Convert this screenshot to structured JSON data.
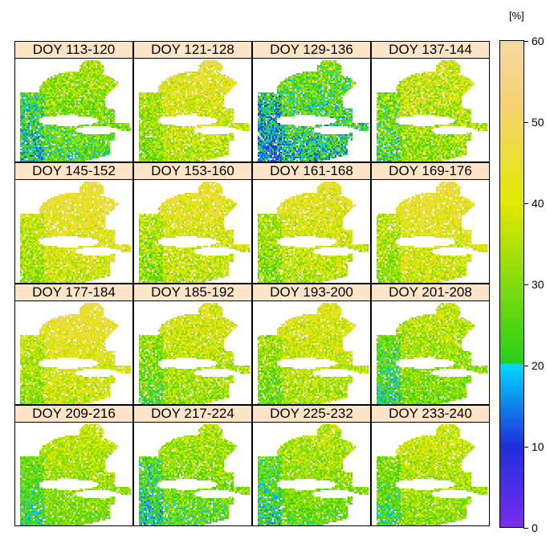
{
  "unit_label": "[%]",
  "panels": [
    {
      "label": "DOY 113-120",
      "mean": 30,
      "spread": 9
    },
    {
      "label": "DOY 121-128",
      "mean": 40,
      "spread": 9
    },
    {
      "label": "DOY 129-136",
      "mean": 25,
      "spread": 10
    },
    {
      "label": "DOY 137-144",
      "mean": 36,
      "spread": 11
    },
    {
      "label": "DOY 145-152",
      "mean": 43,
      "spread": 9
    },
    {
      "label": "DOY 153-160",
      "mean": 41,
      "spread": 9
    },
    {
      "label": "DOY 161-168",
      "mean": 40,
      "spread": 9
    },
    {
      "label": "DOY 169-176",
      "mean": 42,
      "spread": 8
    },
    {
      "label": "DOY 177-184",
      "mean": 42,
      "spread": 8
    },
    {
      "label": "DOY 185-192",
      "mean": 37,
      "spread": 9
    },
    {
      "label": "DOY 193-200",
      "mean": 38,
      "spread": 8
    },
    {
      "label": "DOY 201-208",
      "mean": 33,
      "spread": 8
    },
    {
      "label": "DOY 209-216",
      "mean": 33,
      "spread": 7
    },
    {
      "label": "DOY 217-224",
      "mean": 31,
      "spread": 9
    },
    {
      "label": "DOY 225-232",
      "mean": 32,
      "spread": 8
    },
    {
      "label": "DOY 233-240",
      "mean": 35,
      "spread": 8
    }
  ],
  "colorbar": {
    "min": 0,
    "max": 60,
    "ticks": [
      "0",
      "10",
      "20",
      "30",
      "40",
      "50",
      "60"
    ],
    "stops": [
      {
        "v": 0,
        "color": "#7b2cf0"
      },
      {
        "v": 10,
        "color": "#1e2fdc"
      },
      {
        "v": 20,
        "color": "#00d8ff"
      },
      {
        "v": 20.3,
        "color": "#25d01a"
      },
      {
        "v": 40,
        "color": "#e2e800"
      },
      {
        "v": 52,
        "color": "#f6d271"
      },
      {
        "v": 60,
        "color": "#f7d9a3"
      }
    ]
  }
}
